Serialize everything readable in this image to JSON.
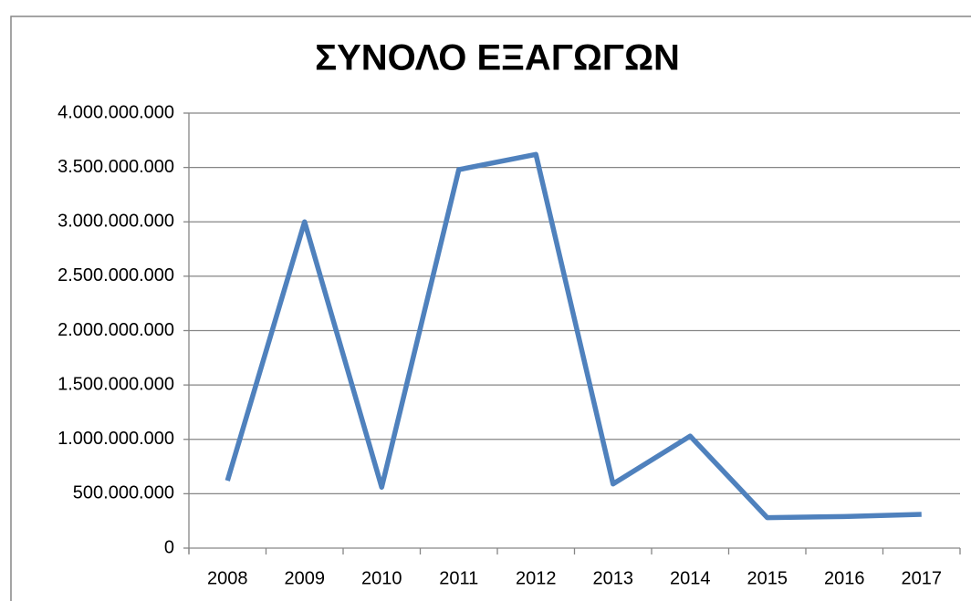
{
  "chart_data": {
    "type": "line",
    "title": "ΣΥΝΟΛΟ ΕΞΑΓΩΓΩΝ",
    "categories": [
      "2008",
      "2009",
      "2010",
      "2011",
      "2012",
      "2013",
      "2014",
      "2015",
      "2016",
      "2017"
    ],
    "series": [
      {
        "name": "ΣΥΝΟΛΟ ΕΞΑΓΩΓΩΝ",
        "color": "#4f81bd",
        "values": [
          620000000,
          3000000000,
          560000000,
          3480000000,
          3620000000,
          590000000,
          1030000000,
          280000000,
          290000000,
          310000000
        ]
      }
    ],
    "ylim": [
      0,
      4000000000
    ],
    "yticks": [
      0,
      {
        "value": 500000000,
        "label": "500.000.000"
      },
      {
        "value": 1000000000,
        "label": "1.000.000.000"
      },
      {
        "value": 1500000000,
        "label": "1.500.000.000"
      },
      {
        "value": 2000000000,
        "label": "2.000.000.000"
      },
      {
        "value": 2500000000,
        "label": "2.500.000.000"
      },
      {
        "value": 3000000000,
        "label": "3.000.000.000"
      },
      {
        "value": 3500000000,
        "label": "3.500.000.000"
      },
      {
        "value": 4000000000,
        "label": "4.000.000.000"
      }
    ],
    "grid": true
  }
}
